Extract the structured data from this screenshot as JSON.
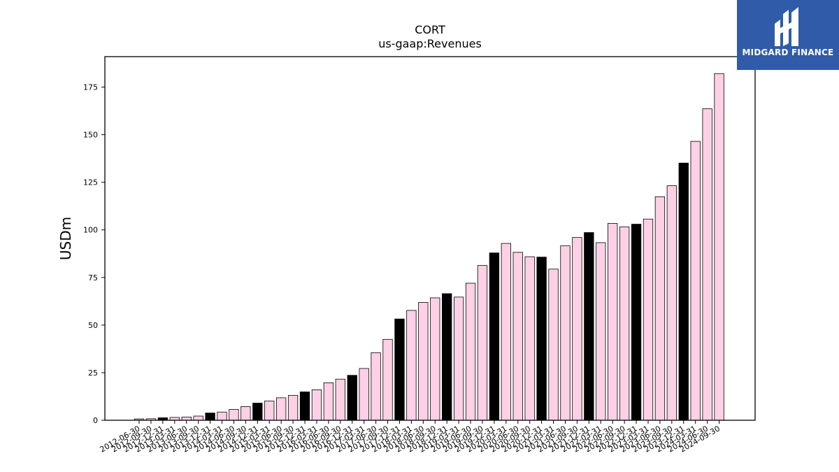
{
  "chart_data": {
    "type": "bar",
    "title": "CORT",
    "subtitle": "us-gaap:Revenues",
    "xlabel": "",
    "ylabel": "USDm",
    "ylim": [
      0,
      191
    ],
    "yticks": [
      0,
      25,
      50,
      75,
      100,
      125,
      150,
      175
    ],
    "grid": false,
    "legend": "none",
    "colors": {
      "quarter": "#fdd0e6",
      "annual": "#000000",
      "edge": "#000000"
    },
    "categories": [
      "2012-06-30",
      "2012-09-30",
      "2012-12-31",
      "2013-03-31",
      "2013-06-30",
      "2013-09-30",
      "2013-12-31",
      "2014-03-31",
      "2014-06-30",
      "2014-09-30",
      "2014-12-31",
      "2015-03-31",
      "2015-06-30",
      "2015-09-30",
      "2015-12-31",
      "2016-03-31",
      "2016-06-30",
      "2016-09-30",
      "2016-12-31",
      "2017-03-31",
      "2017-06-30",
      "2017-09-30",
      "2017-12-31",
      "2018-03-31",
      "2018-06-30",
      "2018-09-30",
      "2018-12-31",
      "2019-03-31",
      "2019-06-30",
      "2019-09-30",
      "2019-12-31",
      "2020-03-31",
      "2020-06-30",
      "2020-09-30",
      "2020-12-31",
      "2021-03-31",
      "2021-06-30",
      "2021-09-30",
      "2021-12-31",
      "2022-03-31",
      "2022-06-30",
      "2022-09-30",
      "2022-12-31",
      "2023-03-31",
      "2023-06-30",
      "2023-09-30",
      "2023-12-31",
      "2024-03-31",
      "2024-06-30",
      "2024-09-30"
    ],
    "values": [
      0.7,
      0.8,
      1.3,
      1.5,
      1.7,
      2.2,
      3.8,
      4.3,
      5.7,
      7.2,
      9.0,
      10.1,
      11.8,
      13.1,
      14.9,
      16.0,
      19.7,
      21.6,
      23.6,
      27.2,
      35.5,
      42.5,
      53.2,
      57.7,
      61.9,
      64.3,
      66.5,
      64.7,
      72.0,
      81.3,
      87.9,
      92.9,
      88.2,
      85.9,
      85.7,
      79.4,
      91.6,
      96.0,
      98.6,
      93.3,
      103.4,
      101.6,
      103.0,
      105.7,
      117.4,
      123.2,
      135.1,
      146.5,
      163.6,
      182.1
    ],
    "annual_flags": [
      false,
      false,
      true,
      false,
      false,
      false,
      true,
      false,
      false,
      false,
      true,
      false,
      false,
      false,
      true,
      false,
      false,
      false,
      true,
      false,
      false,
      false,
      true,
      false,
      false,
      false,
      true,
      false,
      false,
      false,
      true,
      false,
      false,
      false,
      true,
      false,
      false,
      false,
      true,
      false,
      false,
      false,
      true,
      false,
      false,
      false,
      true,
      false,
      false,
      false
    ]
  },
  "logo": {
    "text": "MIDGARD FINANCE",
    "icon": "midgard-logo-icon"
  }
}
